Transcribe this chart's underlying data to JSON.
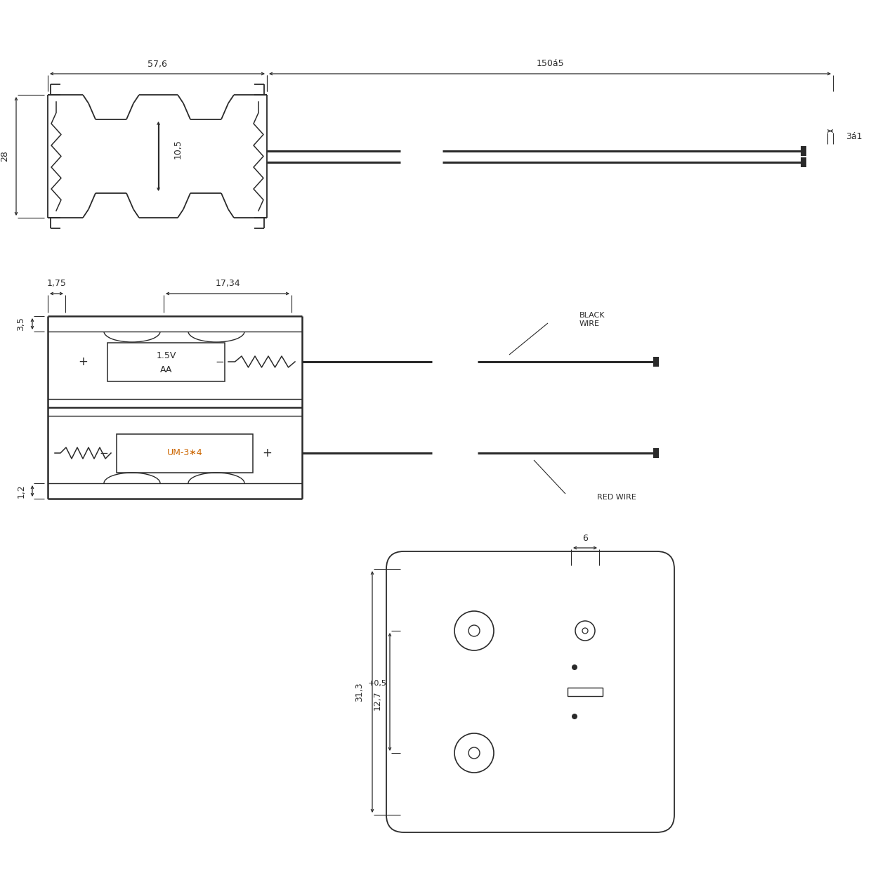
{
  "bg_color": "#ffffff",
  "line_color": "#2a2a2a",
  "dim_color": "#2a2a2a",
  "orange_color": "#cc6600",
  "fig_width": 12.5,
  "fig_height": 12.5,
  "view1": {
    "dim_57_6": "57,6",
    "dim_150_5": "150á5",
    "dim_28": "28",
    "dim_10_5": "10,5",
    "dim_3_1": "3á1"
  },
  "view2": {
    "dim_3_5": "3,5",
    "dim_1_75": "1,75",
    "dim_17_34": "17,34",
    "dim_1_2": "1,2",
    "label_1_5V": "1.5V",
    "label_AA": "AA",
    "label_UM3x4": "UM-3∗4",
    "label_black": "BLACK\nWIRE",
    "label_red": "RED WIRE"
  },
  "view3": {
    "dim_6": "6",
    "dim_31_3": "31,3",
    "dim_12_7": "12,7",
    "dim_0_5": "+0,5"
  }
}
